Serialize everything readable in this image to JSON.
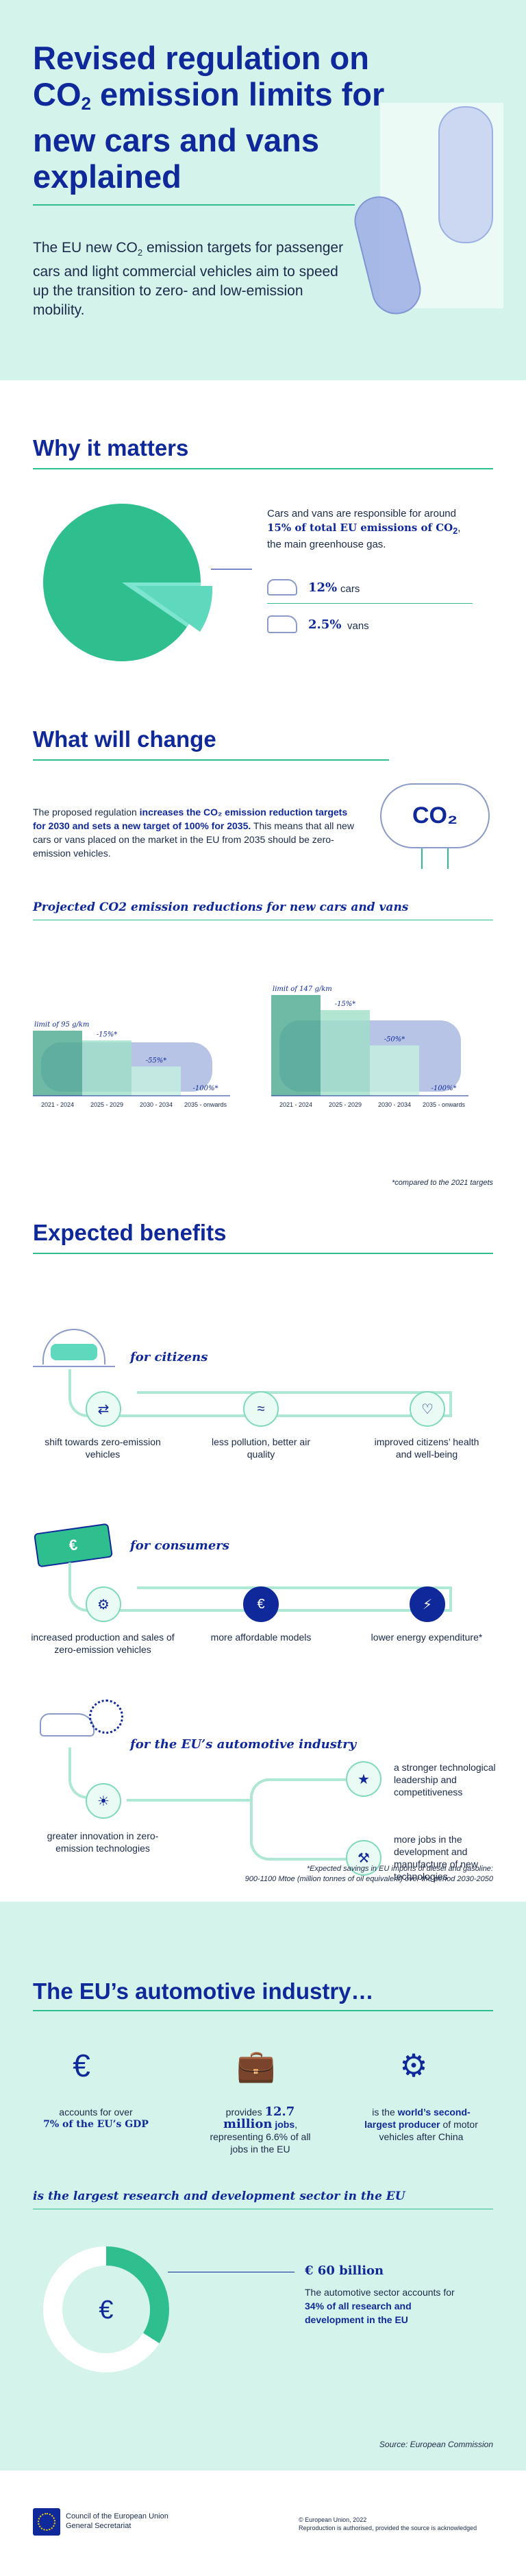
{
  "header": {
    "title_part1": "Revised regulation on CO",
    "title_sub": "2",
    "title_part2": " emission limits for new cars and vans explained",
    "intro_part1": "The EU new CO",
    "intro_sub": "2",
    "intro_part2": " emission targets for passenger cars and light commercial vehicles aim to speed up the transition to zero- and low-emission mobility."
  },
  "why": {
    "heading": "Why it matters",
    "text_part1": "Cars and vans are responsible for around ",
    "text_highlight": "15% of total EU emissions of CO",
    "text_sub": "2",
    "text_part2": ", the main greenhouse gas.",
    "cars_value": "12%",
    "cars_label": "cars",
    "vans_value": "2.5%",
    "vans_label": "vans",
    "colors": {
      "pie_main": "#2fbf8f",
      "pie_slice": "#7ee6d0"
    }
  },
  "change": {
    "heading": "What will change",
    "text_part1": "The proposed regulation ",
    "text_highlight": "increases the CO₂ emission reduction targets for 2030 and sets a new target of 100% for 2035.",
    "text_part2": " This means that all new cars or vans placed on the market in the EU from 2035 should be zero-emission vehicles.",
    "co2_label": "CO₂",
    "chart_title": "Projected CO2 emission reductions for new cars and vans",
    "footnote": "*compared to the 2021 targets"
  },
  "chart_data": [
    {
      "type": "bar",
      "categories": [
        "2021 - 2024",
        "2025 - 2029",
        "2030 - 2034",
        "2035 - onwards"
      ],
      "values": [
        95,
        80.75,
        42.75,
        0
      ],
      "labels": [
        "limit of 95 g/km",
        "-15%*",
        "-55%*",
        "-100%*"
      ]
    },
    {
      "type": "bar",
      "categories": [
        "2021 - 2024",
        "2025 - 2029",
        "2030 - 2034",
        "2035 - onwards"
      ],
      "values": [
        147,
        124.95,
        73.5,
        0
      ],
      "labels": [
        "limit of 147 g/km",
        "-15%*",
        "-50%*",
        "-100%*"
      ]
    }
  ],
  "benefits": {
    "heading": "Expected benefits",
    "citizens": {
      "title": "for citizens",
      "items": [
        "shift towards zero-emission vehicles",
        "less pollution, better air quality",
        "improved citizens’ health and well-being"
      ]
    },
    "consumers": {
      "title": "for consumers",
      "items": [
        "increased production and sales of zero-emission vehicles",
        "more affordable models",
        "lower energy expenditure*"
      ]
    },
    "industry": {
      "title": "for the EU’s automotive industry",
      "items": [
        "greater innovation in zero-emission technologies",
        "a stronger technological leadership and competitiveness",
        "more jobs in the development and manufacture of new technologies"
      ]
    },
    "footnote_line1": "*Expected savings in EU imports of diesel and gasoline:",
    "footnote_line2": "900-1100 Mtoe (million tonnes of oil equivalent) over the period 2030-2050"
  },
  "industry": {
    "heading": "The EU’s automotive industry…",
    "stat1_part1": "accounts for over",
    "stat1_highlight": "7% of the EU’s GDP",
    "stat2_part1": "provides ",
    "stat2_big": "12.7 million",
    "stat2_highlight": "jobs",
    "stat2_part2": ", representing 6.6% of all jobs in the EU",
    "stat3_part1": "is the ",
    "stat3_highlight": "world’s second-largest producer",
    "stat3_part2": " of motor vehicles after China",
    "rd_title": "is the largest research and development sector in the EU",
    "rd_amount": "€ 60 billion",
    "rd_text_part1": "The automotive sector accounts for ",
    "rd_highlight": "34% of all research and development in the EU",
    "source": "Source: European Commission"
  },
  "footer": {
    "org_line1": "Council of the European Union",
    "org_line2": "General Secretariat",
    "copyright_line1": "© European Union, 2022",
    "copyright_line2": "Reproduction is authorised, provided the source is acknowledged"
  }
}
